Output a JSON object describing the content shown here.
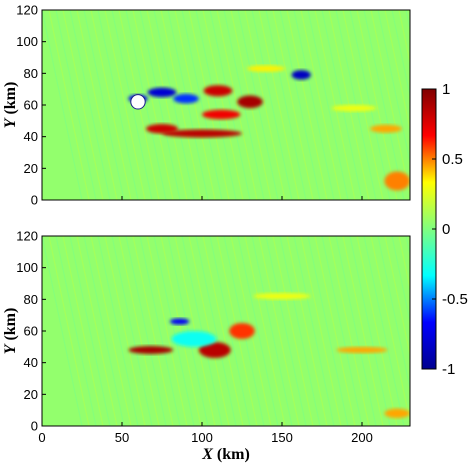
{
  "chart_data": [
    {
      "type": "heatmap",
      "panel": "top",
      "xlabel": "",
      "ylabel": "Y (km)",
      "ylabel_var": "Y",
      "ylabel_unit": "(km)",
      "xlim": [
        0,
        230
      ],
      "ylim": [
        0,
        120
      ],
      "xticks": [
        0,
        50,
        100,
        150,
        200
      ],
      "yticks": [
        0,
        20,
        40,
        60,
        80,
        100,
        120
      ],
      "ytick_labels": [
        "0",
        "20",
        "40",
        "60",
        "80",
        "100",
        "120"
      ],
      "island": {
        "x": 60,
        "y": 62,
        "radius": 4.5
      },
      "background_value": 0.05,
      "features": [
        {
          "x": 60,
          "y": 64,
          "rx": 6,
          "ry": 2.5,
          "value": -0.7
        },
        {
          "x": 75,
          "y": 68,
          "rx": 9,
          "ry": 3,
          "value": -0.8
        },
        {
          "x": 90,
          "y": 64,
          "rx": 8,
          "ry": 3,
          "value": -0.6
        },
        {
          "x": 110,
          "y": 69,
          "rx": 9,
          "ry": 3.5,
          "value": 0.8
        },
        {
          "x": 130,
          "y": 62,
          "rx": 8,
          "ry": 4,
          "value": 0.9
        },
        {
          "x": 112,
          "y": 54,
          "rx": 12,
          "ry": 3,
          "value": 0.7
        },
        {
          "x": 100,
          "y": 42,
          "rx": 25,
          "ry": 2.5,
          "value": 0.85
        },
        {
          "x": 75,
          "y": 45,
          "rx": 10,
          "ry": 3,
          "value": 0.8
        },
        {
          "x": 162,
          "y": 79,
          "rx": 6,
          "ry": 3,
          "value": -0.85
        },
        {
          "x": 140,
          "y": 83,
          "rx": 12,
          "ry": 2,
          "value": 0.35
        },
        {
          "x": 195,
          "y": 58,
          "rx": 14,
          "ry": 2,
          "value": 0.3
        },
        {
          "x": 215,
          "y": 45,
          "rx": 10,
          "ry": 2.5,
          "value": 0.45
        },
        {
          "x": 222,
          "y": 12,
          "rx": 8,
          "ry": 6,
          "value": 0.5
        }
      ]
    },
    {
      "type": "heatmap",
      "panel": "bottom",
      "xlabel": "X (km)",
      "xlabel_var": "X",
      "xlabel_unit": "(km)",
      "ylabel": "Y (km)",
      "ylabel_var": "Y",
      "ylabel_unit": "(km)",
      "xlim": [
        0,
        230
      ],
      "ylim": [
        0,
        120
      ],
      "xticks": [
        0,
        50,
        100,
        150,
        200
      ],
      "xtick_labels": [
        "0",
        "50",
        "100",
        "150",
        "200"
      ],
      "yticks": [
        0,
        20,
        40,
        60,
        80,
        100,
        120
      ],
      "ytick_labels": [
        "0",
        "20",
        "40",
        "60",
        "80",
        "100",
        "120"
      ],
      "background_value": 0.05,
      "features": [
        {
          "x": 68,
          "y": 48,
          "rx": 14,
          "ry": 2.5,
          "value": 0.9
        },
        {
          "x": 108,
          "y": 48,
          "rx": 10,
          "ry": 5,
          "value": 0.85
        },
        {
          "x": 125,
          "y": 60,
          "rx": 8,
          "ry": 5,
          "value": 0.6
        },
        {
          "x": 95,
          "y": 55,
          "rx": 14,
          "ry": 5,
          "value": -0.3
        },
        {
          "x": 86,
          "y": 66,
          "rx": 6,
          "ry": 2,
          "value": -0.7
        },
        {
          "x": 150,
          "y": 82,
          "rx": 18,
          "ry": 2,
          "value": 0.3
        },
        {
          "x": 200,
          "y": 48,
          "rx": 16,
          "ry": 2,
          "value": 0.45
        },
        {
          "x": 222,
          "y": 8,
          "rx": 8,
          "ry": 3,
          "value": 0.45
        }
      ]
    }
  ],
  "colorbar": {
    "min": -1,
    "max": 1,
    "ticks": [
      1,
      0.5,
      0,
      -0.5,
      -1
    ],
    "tick_labels": [
      "1",
      "0.5",
      "0",
      "-0.5",
      "-1"
    ],
    "colormap": [
      "#00008f",
      "#0000ff",
      "#00ffff",
      "#80ff80",
      "#ffff00",
      "#ff0000",
      "#800000"
    ]
  }
}
